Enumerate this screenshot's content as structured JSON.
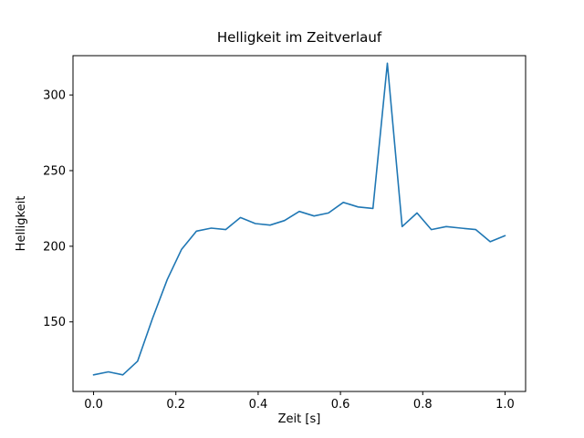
{
  "chart_data": {
    "type": "line",
    "title": "Helligkeit im Zeitverlauf",
    "xlabel": "Zeit [s]",
    "ylabel": "Helligkeit",
    "xlim": [
      -0.05,
      1.05
    ],
    "ylim": [
      104,
      326
    ],
    "xticks": [
      0.0,
      0.2,
      0.4,
      0.6,
      0.8,
      1.0
    ],
    "xtick_labels": [
      "0.0",
      "0.2",
      "0.4",
      "0.6",
      "0.8",
      "1.0"
    ],
    "yticks": [
      150,
      200,
      250,
      300
    ],
    "ytick_labels": [
      "150",
      "200",
      "250",
      "300"
    ],
    "grid": false,
    "legend": "none",
    "line_color": "#1f77b4",
    "x": [
      0.0,
      0.036,
      0.071,
      0.107,
      0.143,
      0.179,
      0.214,
      0.25,
      0.286,
      0.321,
      0.357,
      0.393,
      0.429,
      0.464,
      0.5,
      0.536,
      0.571,
      0.607,
      0.643,
      0.679,
      0.714,
      0.75,
      0.786,
      0.821,
      0.857,
      0.893,
      0.929,
      0.964,
      1.0
    ],
    "y": [
      115,
      117,
      115,
      124,
      152,
      178,
      198,
      210,
      212,
      211,
      219,
      215,
      214,
      217,
      223,
      220,
      222,
      229,
      226,
      225,
      321,
      213,
      222,
      211,
      213,
      212,
      211,
      203,
      207
    ]
  }
}
